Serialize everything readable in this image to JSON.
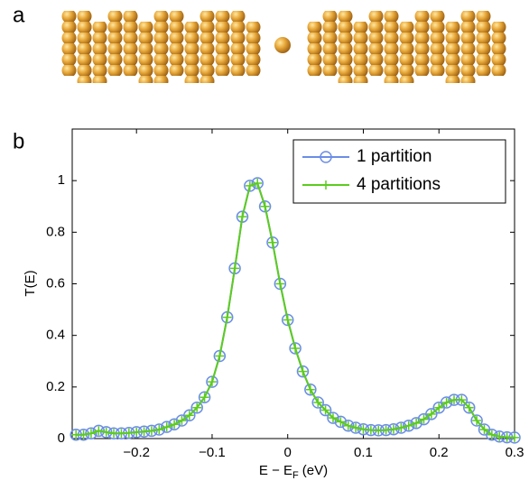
{
  "panel_labels": [
    "a",
    "b"
  ],
  "chart_data": {
    "type": "line",
    "x_label": "E − E",
    "x_label_sub": "F",
    "x_label_unit": "(eV)",
    "y_label": "T(E)",
    "x": [
      -0.28,
      -0.27,
      -0.26,
      -0.25,
      -0.24,
      -0.23,
      -0.22,
      -0.21,
      -0.2,
      -0.19,
      -0.18,
      -0.17,
      -0.16,
      -0.15,
      -0.14,
      -0.13,
      -0.12,
      -0.11,
      -0.1,
      -0.09,
      -0.08,
      -0.07,
      -0.06,
      -0.05,
      -0.04,
      -0.03,
      -0.02,
      -0.01,
      0,
      0.01,
      0.02,
      0.03,
      0.04,
      0.05,
      0.06,
      0.07,
      0.08,
      0.09,
      0.1,
      0.11,
      0.12,
      0.13,
      0.14,
      0.15,
      0.16,
      0.17,
      0.18,
      0.19,
      0.2,
      0.21,
      0.22,
      0.23,
      0.24,
      0.25,
      0.26,
      0.27,
      0.28,
      0.29,
      0.3
    ],
    "series": [
      {
        "name": "1 partition",
        "color": "#6b8de6",
        "marker": "circle",
        "values": [
          0.015,
          0.015,
          0.02,
          0.03,
          0.025,
          0.02,
          0.02,
          0.022,
          0.025,
          0.027,
          0.03,
          0.035,
          0.045,
          0.055,
          0.07,
          0.09,
          0.12,
          0.16,
          0.22,
          0.32,
          0.47,
          0.66,
          0.86,
          0.98,
          0.99,
          0.9,
          0.76,
          0.6,
          0.46,
          0.35,
          0.26,
          0.19,
          0.14,
          0.11,
          0.08,
          0.065,
          0.05,
          0.042,
          0.036,
          0.033,
          0.032,
          0.033,
          0.036,
          0.042,
          0.05,
          0.06,
          0.075,
          0.095,
          0.12,
          0.14,
          0.15,
          0.15,
          0.12,
          0.07,
          0.035,
          0.015,
          0.008,
          0.005,
          0.004
        ]
      },
      {
        "name": "4 partitions",
        "color": "#5ccc1e",
        "marker": "plus",
        "values": [
          0.015,
          0.015,
          0.02,
          0.03,
          0.025,
          0.02,
          0.02,
          0.022,
          0.025,
          0.027,
          0.03,
          0.035,
          0.045,
          0.055,
          0.07,
          0.09,
          0.12,
          0.16,
          0.22,
          0.32,
          0.47,
          0.66,
          0.86,
          0.98,
          0.99,
          0.9,
          0.76,
          0.6,
          0.46,
          0.35,
          0.26,
          0.19,
          0.14,
          0.11,
          0.08,
          0.065,
          0.05,
          0.042,
          0.036,
          0.033,
          0.032,
          0.033,
          0.036,
          0.042,
          0.05,
          0.06,
          0.075,
          0.095,
          0.12,
          0.14,
          0.15,
          0.15,
          0.12,
          0.07,
          0.035,
          0.015,
          0.008,
          0.005,
          0.004
        ]
      }
    ],
    "xlim": [
      -0.285,
      0.3
    ],
    "ylim": [
      0,
      1.2
    ],
    "xticks": [
      {
        "value": -0.2,
        "label": "−0.2"
      },
      {
        "value": -0.1,
        "label": "−0.1"
      },
      0,
      0.1,
      0.2,
      0.3
    ],
    "yticks": [
      0,
      0.2,
      0.4,
      0.6,
      0.8,
      1
    ],
    "legend": "upper right",
    "grid": false
  }
}
